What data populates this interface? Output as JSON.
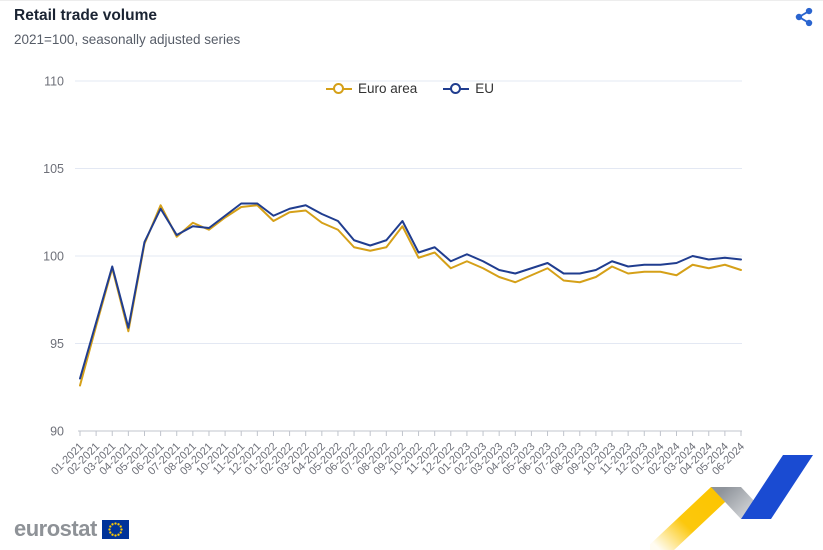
{
  "header": {
    "title": "Retail trade volume",
    "subtitle": "2021=100, seasonally adjusted series"
  },
  "icons": {
    "share": "share-icon",
    "eu_flag": "eu-flag-icon"
  },
  "colors": {
    "euro_area": "#d5a018",
    "eu": "#203d8f",
    "grid": "#e3e8f3",
    "axis": "#c0c4cc",
    "axis_label": "#6e7079",
    "share": "#2a64cf",
    "flag_blue": "#003399",
    "flag_yellow": "#ffcc00",
    "deco_yellow": "#fcc500",
    "deco_gray_dark": "#8f949b",
    "deco_gray_light": "#e0e2e4",
    "deco_blue": "#1a4bd2"
  },
  "legend": [
    {
      "label": "Euro area",
      "color": "#d5a018"
    },
    {
      "label": "EU",
      "color": "#203d8f"
    }
  ],
  "chart_data": {
    "type": "line",
    "title": "Retail trade volume",
    "subtitle": "2021=100, seasonally adjusted series",
    "xlabel": "",
    "ylabel": "",
    "ylim": [
      90,
      110
    ],
    "yticks": [
      90,
      95,
      100,
      105,
      110
    ],
    "grid": true,
    "legend_position": "top-center",
    "x": [
      "01-2021",
      "02-2021",
      "03-2021",
      "04-2021",
      "05-2021",
      "06-2021",
      "07-2021",
      "08-2021",
      "09-2021",
      "10-2021",
      "11-2021",
      "12-2021",
      "01-2022",
      "02-2022",
      "03-2022",
      "04-2022",
      "05-2022",
      "06-2022",
      "07-2022",
      "08-2022",
      "09-2022",
      "10-2022",
      "11-2022",
      "12-2022",
      "01-2023",
      "02-2023",
      "03-2023",
      "04-2023",
      "05-2023",
      "06-2023",
      "07-2023",
      "08-2023",
      "09-2023",
      "10-2023",
      "11-2023",
      "12-2023",
      "01-2024",
      "02-2024",
      "03-2024",
      "04-2024",
      "05-2024",
      "06-2024"
    ],
    "series": [
      {
        "name": "Euro area",
        "color": "#d5a018",
        "values": [
          92.6,
          96.0,
          99.3,
          95.7,
          100.7,
          102.9,
          101.1,
          101.9,
          101.5,
          102.2,
          102.8,
          102.9,
          102.0,
          102.5,
          102.6,
          101.9,
          101.5,
          100.5,
          100.3,
          100.5,
          101.7,
          99.9,
          100.2,
          99.3,
          99.7,
          99.3,
          98.8,
          98.5,
          98.9,
          99.3,
          98.6,
          98.5,
          98.8,
          99.4,
          99.0,
          99.1,
          99.1,
          98.9,
          99.5,
          99.3,
          99.5,
          99.2
        ]
      },
      {
        "name": "EU",
        "color": "#203d8f",
        "values": [
          93.0,
          96.2,
          99.4,
          95.9,
          100.8,
          102.7,
          101.2,
          101.7,
          101.6,
          102.3,
          103.0,
          103.0,
          102.3,
          102.7,
          102.9,
          102.4,
          102.0,
          100.9,
          100.6,
          100.9,
          102.0,
          100.2,
          100.5,
          99.7,
          100.1,
          99.7,
          99.2,
          99.0,
          99.3,
          99.6,
          99.0,
          99.0,
          99.2,
          99.7,
          99.4,
          99.5,
          99.5,
          99.6,
          100.0,
          99.8,
          99.9,
          99.8
        ]
      }
    ]
  },
  "footer": {
    "logo_text": "eurostat"
  }
}
